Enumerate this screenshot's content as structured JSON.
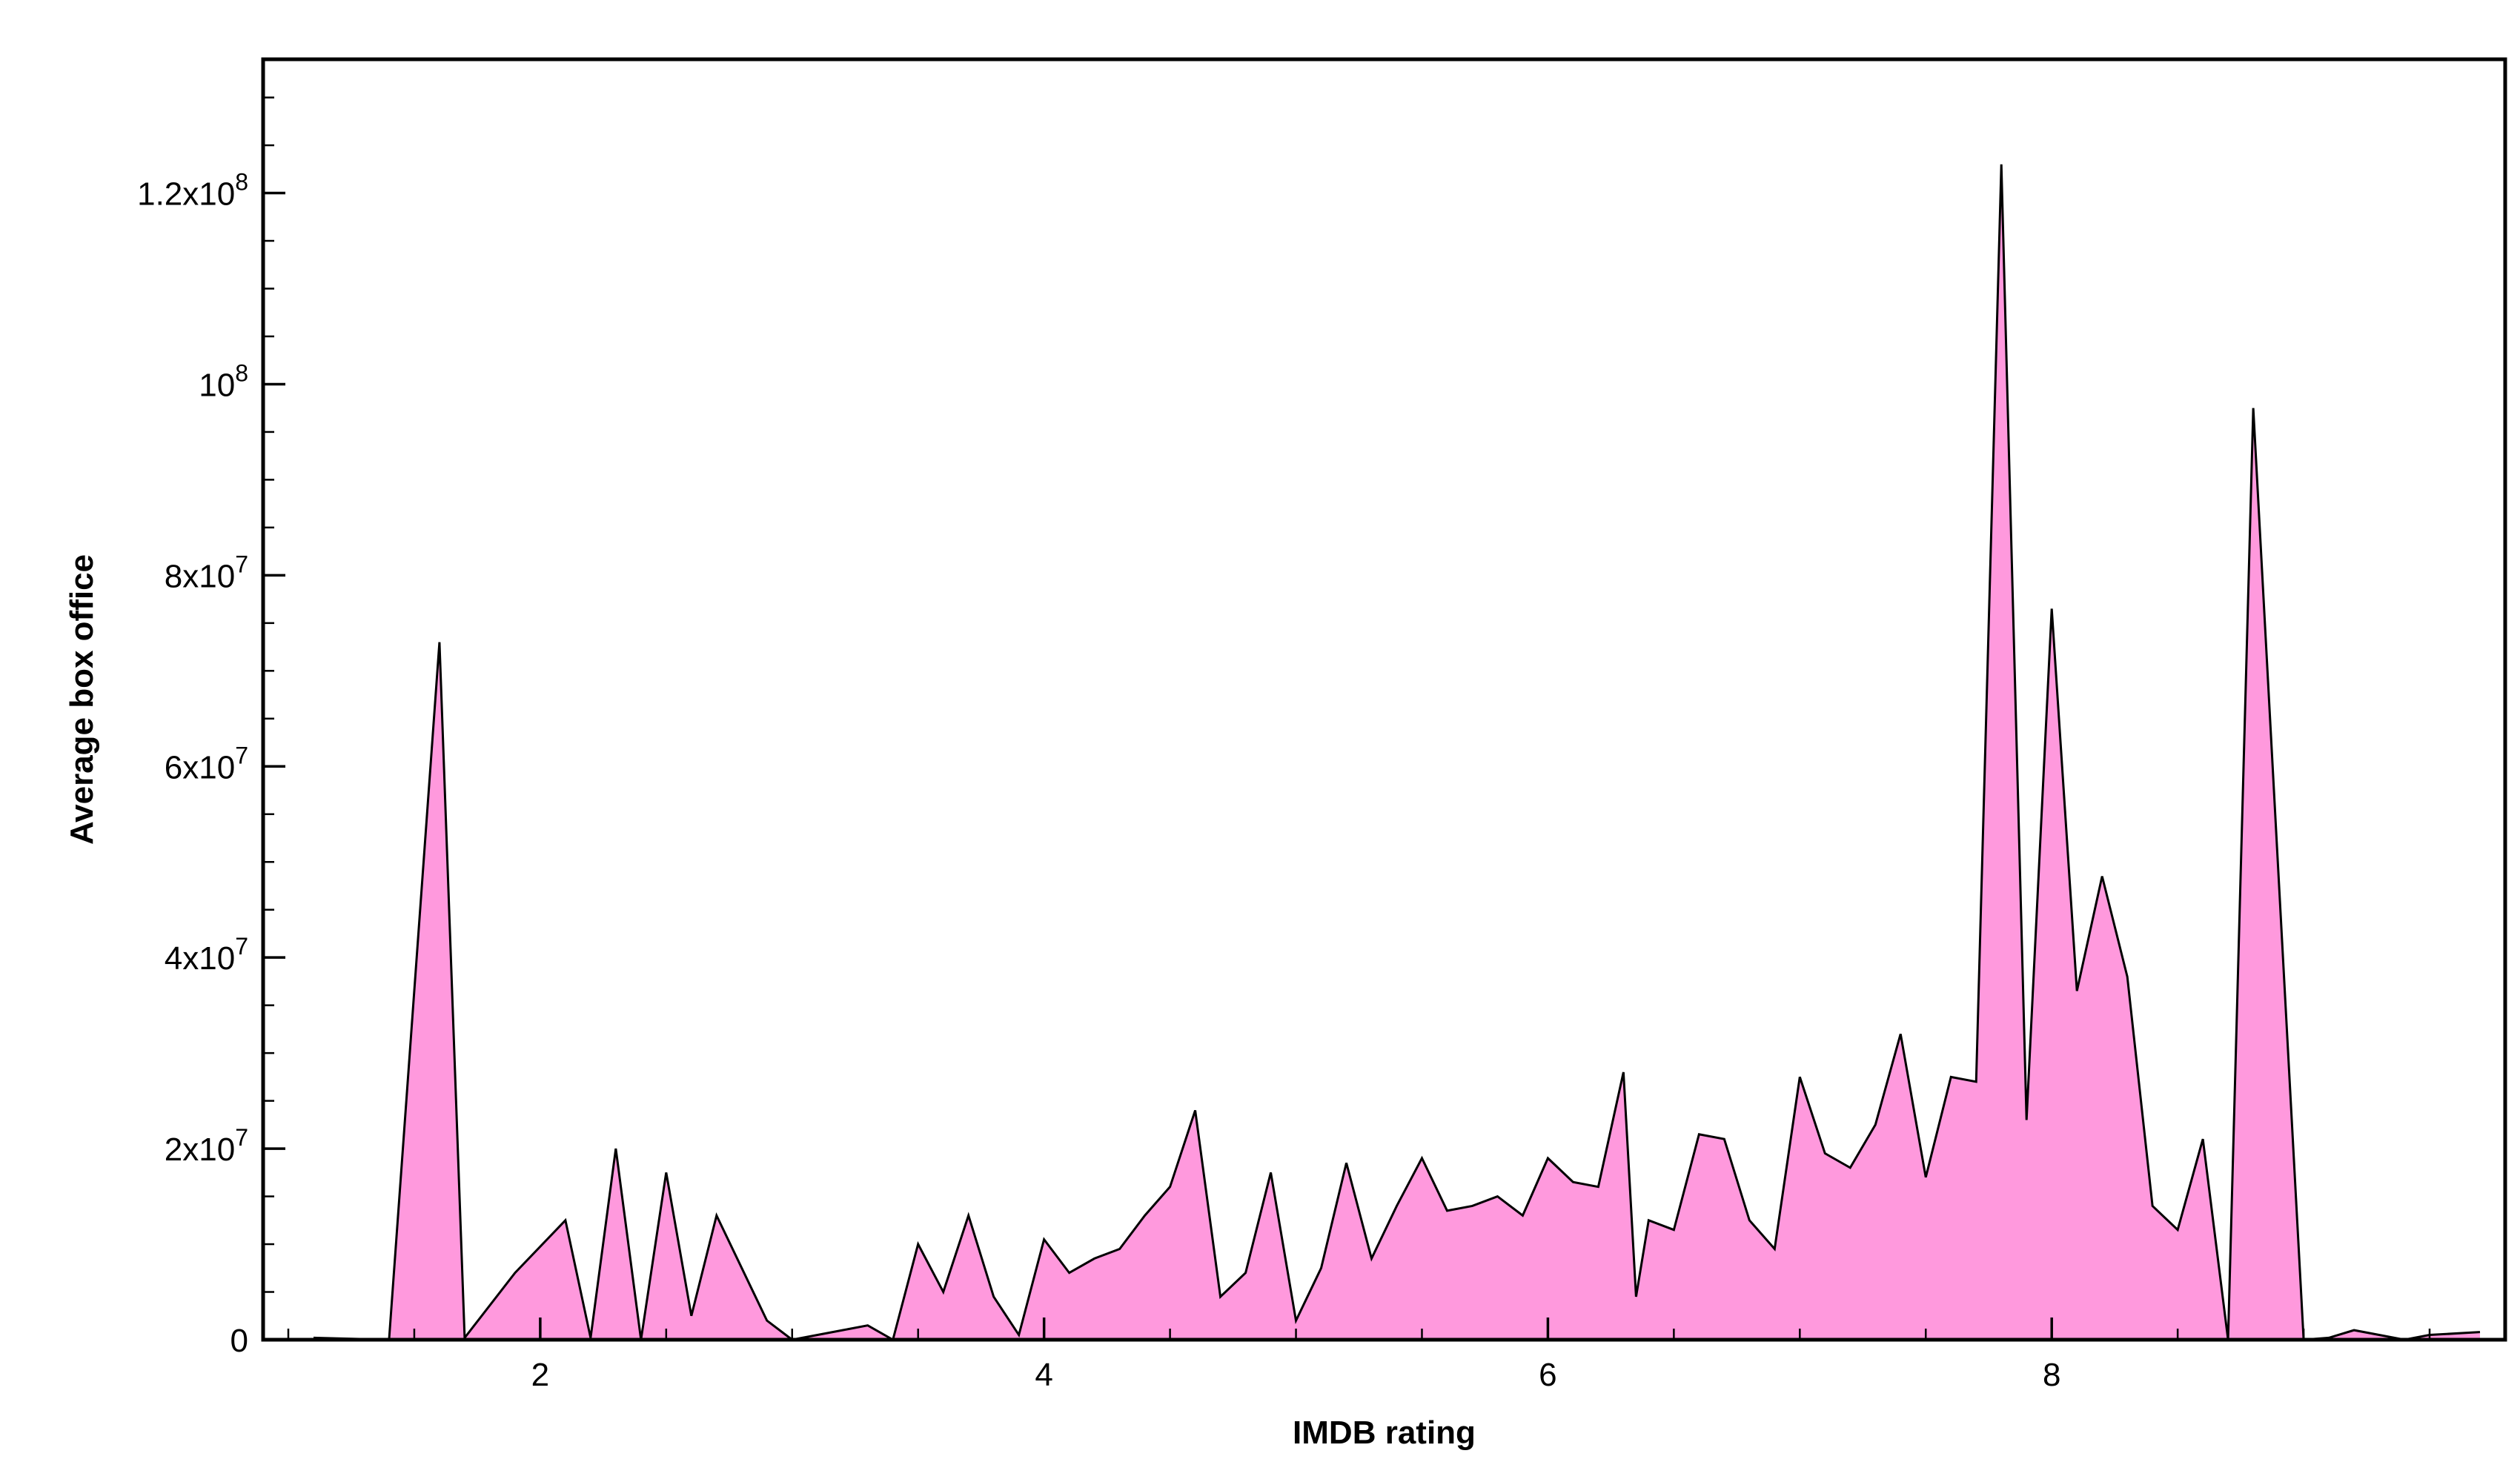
{
  "chart_data": {
    "type": "area",
    "title": "",
    "xlabel": "IMDB rating",
    "ylabel": "Average box office",
    "xlim": [
      0.9,
      9.8
    ],
    "ylim": [
      0,
      134000000
    ],
    "grid": false,
    "x_ticks": [
      2,
      4,
      6,
      8
    ],
    "y_ticks": [
      {
        "value": 0,
        "mantissa": "0",
        "exponent": ""
      },
      {
        "value": 20000000,
        "mantissa": "2x10",
        "exponent": "7"
      },
      {
        "value": 40000000,
        "mantissa": "4x10",
        "exponent": "7"
      },
      {
        "value": 60000000,
        "mantissa": "6x10",
        "exponent": "7"
      },
      {
        "value": 80000000,
        "mantissa": "8x10",
        "exponent": "7"
      },
      {
        "value": 100000000,
        "mantissa": "10",
        "exponent": "8"
      },
      {
        "value": 120000000,
        "mantissa": "1.2x10",
        "exponent": "8"
      }
    ],
    "y_minor_step": 5000000,
    "x_minor_step": 0.5,
    "fill_color": "#ff99dd",
    "line_color": "#000000",
    "x": [
      1.1,
      1.4,
      1.6,
      1.7,
      1.9,
      2.1,
      2.2,
      2.3,
      2.4,
      2.5,
      2.6,
      2.7,
      2.9,
      3.0,
      3.2,
      3.3,
      3.4,
      3.5,
      3.6,
      3.7,
      3.8,
      3.9,
      4.0,
      4.1,
      4.2,
      4.3,
      4.4,
      4.5,
      4.6,
      4.7,
      4.8,
      4.9,
      5.0,
      5.1,
      5.2,
      5.3,
      5.4,
      5.5,
      5.6,
      5.7,
      5.8,
      5.9,
      6.0,
      6.1,
      6.2,
      6.3,
      6.35,
      6.4,
      6.5,
      6.6,
      6.7,
      6.8,
      6.9,
      7.0,
      7.1,
      7.2,
      7.3,
      7.4,
      7.5,
      7.6,
      7.7,
      7.8,
      7.9,
      8.0,
      8.1,
      8.2,
      8.3,
      8.4,
      8.5,
      8.6,
      8.7,
      8.8,
      9.0,
      9.1,
      9.2,
      9.4,
      9.5,
      9.7
    ],
    "values": [
      200000,
      0,
      73000000,
      200000,
      7000000,
      12500000,
      200000,
      20000000,
      0,
      17500000,
      2500000,
      13000000,
      2000000,
      0,
      1000000,
      1500000,
      0,
      10000000,
      5000000,
      13000000,
      4500000,
      500000,
      10500000,
      7000000,
      8500000,
      9500000,
      13000000,
      16000000,
      24000000,
      4500000,
      7000000,
      17500000,
      2000000,
      7500000,
      18500000,
      8500000,
      14000000,
      19000000,
      13500000,
      14000000,
      15000000,
      13000000,
      19000000,
      16500000,
      16000000,
      28000000,
      4500000,
      12500000,
      11500000,
      21500000,
      21000000,
      12500000,
      9500000,
      27500000,
      19500000,
      18000000,
      22500000,
      32000000,
      17000000,
      27500000,
      27000000,
      123000000,
      23000000,
      76500000,
      36500000,
      48500000,
      38000000,
      14000000,
      11500000,
      21000000,
      0,
      97500000,
      0,
      200000,
      1000000,
      0,
      500000,
      800000
    ]
  }
}
